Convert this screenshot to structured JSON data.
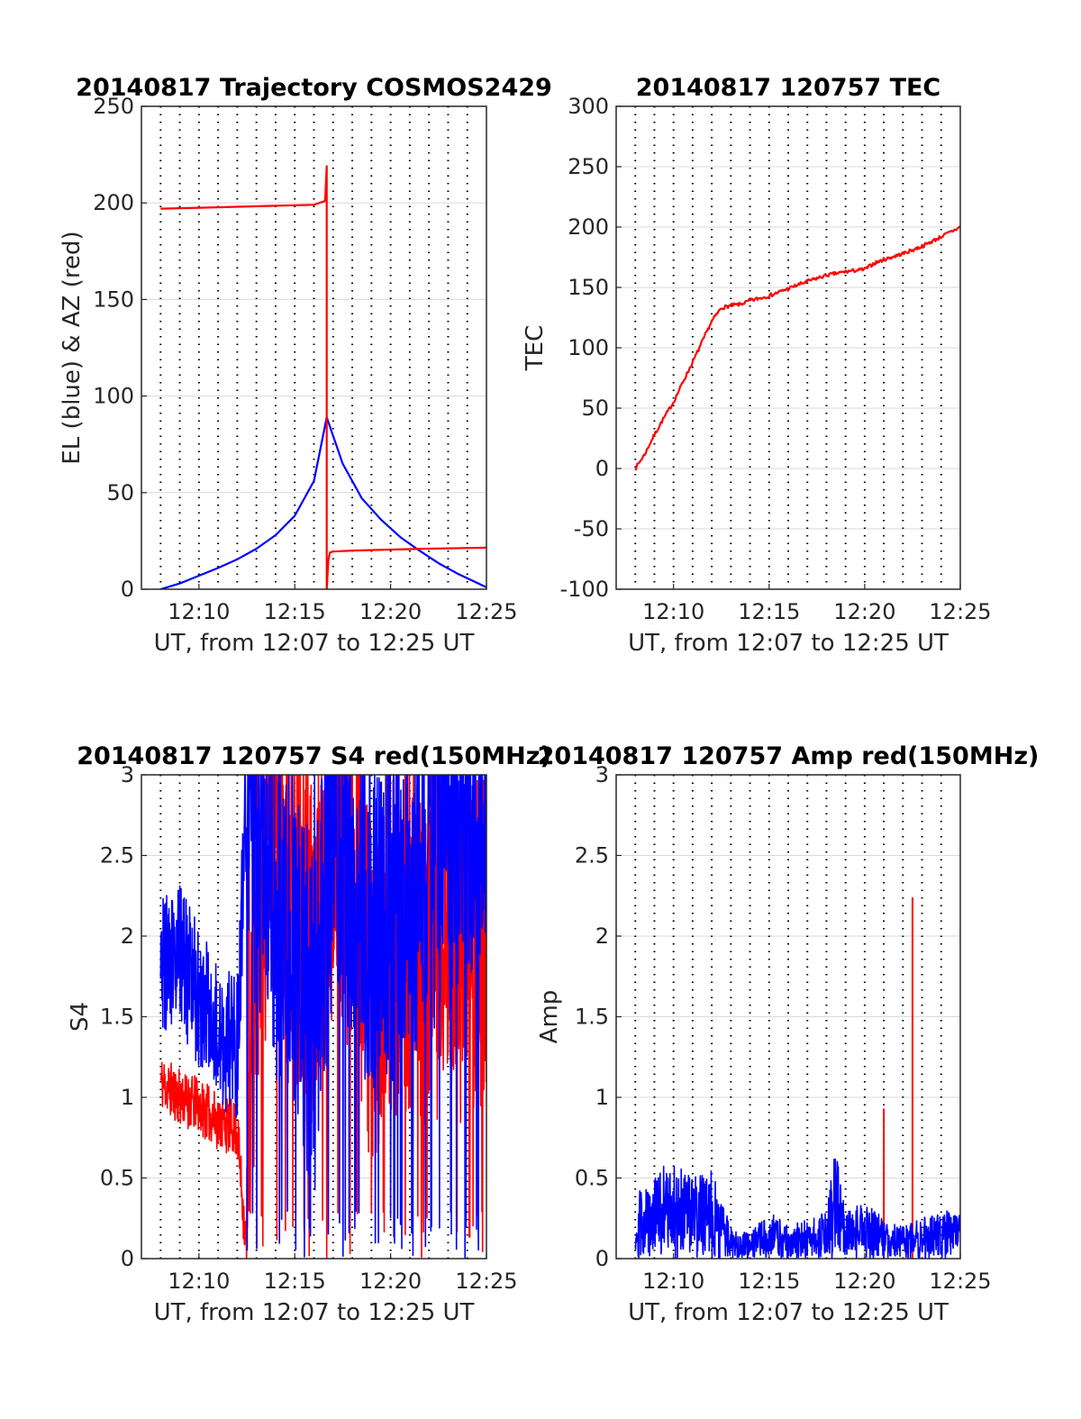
{
  "figure": {
    "date": "20140817"
  },
  "colors": {
    "el": "#0000ff",
    "az": "#ff0000",
    "tec": "#ff0000",
    "s4_red": "#ff0000",
    "s4_blue": "#0000ff",
    "amp_red": "#ff0000",
    "amp_blue": "#0000ff",
    "grid": "#d9d9d9",
    "vgrid": "#000000",
    "axis": "#262626"
  },
  "chart_data": [
    {
      "id": "trajectory",
      "type": "line",
      "title": "20140817 Trajectory COSMOS2429",
      "xlabel": "UT, from 12:07 to 12:25 UT",
      "ylabel": "EL (blue) & AZ (red)",
      "xlim": [
        "12:07",
        "12:25"
      ],
      "ylim": [
        0,
        250
      ],
      "xticks": [
        "12:10",
        "12:15",
        "12:20",
        "12:25"
      ],
      "yticks": [
        "0",
        "50",
        "100",
        "150",
        "200",
        "250"
      ],
      "grid": true,
      "series": [
        {
          "role": "el",
          "color": "blue",
          "x": [
            "12:08:00",
            "12:09:00",
            "12:10:00",
            "12:11:00",
            "12:12:00",
            "12:13:00",
            "12:14:00",
            "12:15:00",
            "12:16:00",
            "12:16:40",
            "12:17:30",
            "12:18:30",
            "12:19:30",
            "12:20:30",
            "12:21:30",
            "12:22:30",
            "12:23:30",
            "12:25:00"
          ],
          "values": [
            0,
            3,
            7,
            11,
            15.5,
            21,
            28,
            38,
            56,
            89,
            65,
            47,
            36,
            27,
            20,
            13.5,
            8,
            1
          ]
        },
        {
          "role": "az",
          "color": "red",
          "x": [
            "12:08:00",
            "12:10:00",
            "12:12:00",
            "12:14:00",
            "12:16:00",
            "12:16:35",
            "12:16:40",
            "12:16:40",
            "12:16:45",
            "12:16:50",
            "12:17:00",
            "12:18:00",
            "12:20:00",
            "12:22:00",
            "12:25:00"
          ],
          "values": [
            197,
            197.5,
            198,
            198.5,
            199,
            201,
            219,
            0,
            15,
            19,
            19.5,
            20,
            20.5,
            21,
            21.5
          ]
        }
      ]
    },
    {
      "id": "tec",
      "type": "line",
      "title": "20140817 120757 TEC",
      "xlabel": "UT, from 12:07 to 12:25 UT",
      "ylabel": "TEC",
      "xlim": [
        "12:07",
        "12:25"
      ],
      "ylim": [
        -100,
        300
      ],
      "xticks": [
        "12:10",
        "12:15",
        "12:20",
        "12:25"
      ],
      "yticks": [
        "-100",
        "-50",
        "0",
        "50",
        "100",
        "150",
        "200",
        "250",
        "300"
      ],
      "grid": true,
      "series": [
        {
          "role": "tec",
          "color": "red",
          "x": [
            "12:08:00",
            "12:08:30",
            "12:09:00",
            "12:09:30",
            "12:10:00",
            "12:10:30",
            "12:11:00",
            "12:11:30",
            "12:12:00",
            "12:12:30",
            "12:13:00",
            "12:13:30",
            "12:14:00",
            "12:14:30",
            "12:15:00",
            "12:15:30",
            "12:16:00",
            "12:17:00",
            "12:18:00",
            "12:19:00",
            "12:20:00",
            "12:20:30",
            "12:21:00",
            "12:22:00",
            "12:23:00",
            "12:24:00",
            "12:25:00"
          ],
          "values": [
            0,
            12,
            28,
            42,
            55,
            72,
            88,
            105,
            122,
            133,
            135,
            136,
            139,
            141,
            143,
            146,
            149,
            155,
            160,
            163,
            165,
            170,
            173,
            178,
            184,
            192,
            200
          ]
        }
      ]
    },
    {
      "id": "s4",
      "type": "line",
      "title": "20140817 120757 S4 red(150MHz)",
      "xlabel": "UT, from 12:07 to 12:25 UT",
      "ylabel": "S4",
      "xlim": [
        "12:07",
        "12:25"
      ],
      "ylim": [
        0,
        3
      ],
      "xticks": [
        "12:10",
        "12:15",
        "12:20",
        "12:25"
      ],
      "yticks": [
        "0",
        "0.5",
        "1",
        "1.5",
        "2",
        "2.5",
        "3"
      ],
      "grid": true,
      "series": [
        {
          "role": "s4_red",
          "color": "red",
          "x": [
            "12:08:00",
            "12:09:00",
            "12:10:00",
            "12:11:00",
            "12:12:00",
            "12:12:30",
            "12:13:00",
            "12:14:00",
            "12:15:00",
            "12:16:00",
            "12:17:00",
            "12:18:00",
            "12:19:00",
            "12:20:00",
            "12:21:00",
            "12:22:00",
            "12:23:00",
            "12:24:00",
            "12:25:00"
          ],
          "values": [
            1.1,
            1.0,
            0.95,
            0.85,
            0.8,
            0.0,
            2.1,
            2.8,
            2.2,
            1.8,
            2.6,
            2.2,
            1.6,
            2.0,
            1.9,
            1.9,
            2.0,
            1.9,
            1.9
          ]
        },
        {
          "role": "s4_blue",
          "color": "blue",
          "x": [
            "12:08:00",
            "12:09:00",
            "12:10:00",
            "12:11:00",
            "12:12:00",
            "12:12:30",
            "12:13:00",
            "12:14:00",
            "12:15:00",
            "12:16:00",
            "12:17:00",
            "12:18:00",
            "12:19:00",
            "12:20:00",
            "12:21:00",
            "12:22:00",
            "12:23:00",
            "12:24:00",
            "12:25:00"
          ],
          "values": [
            1.8,
            1.9,
            1.6,
            1.4,
            1.3,
            3.0,
            2.6,
            2.2,
            2.0,
            1.4,
            2.7,
            2.4,
            1.9,
            2.1,
            2.3,
            2.5,
            2.6,
            2.8,
            2.7
          ]
        }
      ]
    },
    {
      "id": "amp",
      "type": "line",
      "title": "20140817 120757 Amp red(150MHz)",
      "xlabel": "UT, from 12:07 to 12:25 UT",
      "ylabel": "Amp",
      "xlim": [
        "12:07",
        "12:25"
      ],
      "ylim": [
        0,
        3
      ],
      "xticks": [
        "12:10",
        "12:15",
        "12:20",
        "12:25"
      ],
      "yticks": [
        "0",
        "0.5",
        "1",
        "1.5",
        "2",
        "2.5",
        "3"
      ],
      "grid": true,
      "series": [
        {
          "role": "amp_red",
          "color": "red",
          "x": [
            "12:21:00",
            "12:22:30"
          ],
          "values": [
            0.93,
            2.24
          ]
        },
        {
          "role": "amp_blue",
          "color": "blue",
          "x": [
            "12:08:00",
            "12:09:00",
            "12:10:00",
            "12:11:00",
            "12:12:00",
            "12:13:00",
            "12:14:00",
            "12:15:00",
            "12:16:00",
            "12:17:00",
            "12:18:00",
            "12:18:30",
            "12:19:00",
            "12:20:00",
            "12:21:00",
            "12:22:00",
            "12:23:00",
            "12:24:00",
            "12:25:00"
          ],
          "values": [
            0.4,
            0.55,
            0.6,
            0.5,
            0.55,
            0.2,
            0.15,
            0.3,
            0.2,
            0.25,
            0.3,
            0.7,
            0.3,
            0.35,
            0.25,
            0.2,
            0.25,
            0.3,
            0.3
          ]
        }
      ]
    }
  ]
}
